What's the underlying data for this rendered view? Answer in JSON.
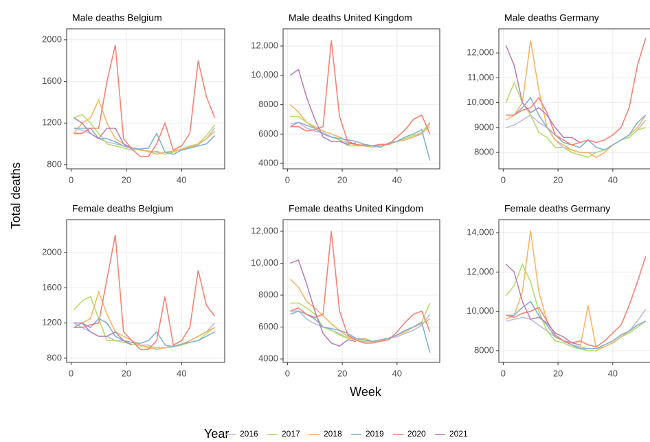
{
  "chart_data": [
    {
      "type": "line",
      "title": "Male deaths Belgium",
      "x": [
        1,
        4,
        7,
        10,
        13,
        16,
        19,
        22,
        25,
        28,
        31,
        34,
        37,
        40,
        43,
        46,
        49,
        52
      ],
      "xlim": [
        -1.6,
        55.6
      ],
      "xticks": [
        0,
        20,
        40
      ],
      "ylim": [
        760,
        2105
      ],
      "yticks": [
        800,
        1200,
        1600,
        2000
      ],
      "grid": true,
      "series": [
        {
          "name": "2016",
          "color": "#bebada",
          "values": [
            1150,
            1130,
            1100,
            1050,
            1020,
            1000,
            980,
            960,
            940,
            930,
            920,
            900,
            930,
            950,
            960,
            990,
            1050,
            1150
          ]
        },
        {
          "name": "2017",
          "color": "#b3de69",
          "values": [
            1250,
            1280,
            1200,
            1100,
            1000,
            980,
            960,
            940,
            950,
            920,
            930,
            900,
            920,
            950,
            980,
            1000,
            1080,
            1180
          ]
        },
        {
          "name": "2018",
          "color": "#fdb462",
          "values": [
            1100,
            1200,
            1250,
            1420,
            1200,
            1050,
            1000,
            960,
            940,
            930,
            900,
            920,
            930,
            950,
            970,
            1000,
            1050,
            1120
          ]
        },
        {
          "name": "2019",
          "color": "#80b1d3",
          "values": [
            1150,
            1150,
            1150,
            1050,
            1050,
            1020,
            980,
            960,
            950,
            960,
            1100,
            920,
            900,
            940,
            960,
            980,
            1000,
            1080
          ]
        },
        {
          "name": "2020",
          "color": "#fb8072",
          "values": [
            1100,
            1100,
            1150,
            1150,
            1600,
            1950,
            1050,
            950,
            880,
            880,
            1000,
            1200,
            940,
            980,
            1100,
            1800,
            1450,
            1250
          ]
        },
        {
          "name": "2021",
          "color": "#bc80bd",
          "values": [
            1250,
            1200,
            1100,
            1050,
            1150,
            1150,
            1000,
            950,
            null,
            null,
            null,
            null,
            null,
            null,
            null,
            null,
            null,
            null
          ]
        }
      ]
    },
    {
      "type": "line",
      "title": "Male deaths United Kingdom",
      "x": [
        1,
        4,
        7,
        10,
        13,
        16,
        19,
        22,
        25,
        28,
        31,
        34,
        37,
        40,
        43,
        46,
        49,
        52
      ],
      "xlim": [
        -1.6,
        55.6
      ],
      "xticks": [
        0,
        20,
        40
      ],
      "ylim": [
        3630,
        13170
      ],
      "yticks": [
        4000,
        6000,
        8000,
        {
          "value": 10000,
          "label": "10,000"
        },
        {
          "value": 12000,
          "label": "12,000"
        }
      ],
      "grid": true,
      "series": [
        {
          "name": "2016",
          "color": "#bebada",
          "values": [
            6700,
            6800,
            6400,
            6200,
            6100,
            5800,
            5600,
            5400,
            5300,
            5200,
            5200,
            5300,
            5300,
            5500,
            5600,
            5800,
            6000,
            6700
          ]
        },
        {
          "name": "2017",
          "color": "#b3de69",
          "values": [
            7200,
            7200,
            6800,
            6400,
            6000,
            5800,
            5600,
            5200,
            5200,
            5200,
            5100,
            5200,
            5300,
            5500,
            5700,
            5900,
            6100,
            6800
          ]
        },
        {
          "name": "2018",
          "color": "#fdb462",
          "values": [
            8000,
            7500,
            6800,
            6500,
            6200,
            6000,
            5800,
            5500,
            5200,
            5300,
            5200,
            5200,
            5300,
            5500,
            5600,
            5800,
            6100,
            6500
          ]
        },
        {
          "name": "2019",
          "color": "#80b1d3",
          "values": [
            6500,
            6800,
            6600,
            6400,
            6000,
            5800,
            5700,
            5600,
            5500,
            5300,
            5200,
            5100,
            5400,
            5500,
            5800,
            6000,
            6300,
            4200
          ]
        },
        {
          "name": "2020",
          "color": "#fb8072",
          "values": [
            6500,
            6500,
            6200,
            6300,
            6500,
            12400,
            7200,
            5500,
            5300,
            5200,
            5200,
            5300,
            5300,
            5800,
            6300,
            7000,
            7300,
            6000
          ]
        },
        {
          "name": "2021",
          "color": "#bc80bd",
          "values": [
            10000,
            10400,
            8500,
            7000,
            5800,
            5500,
            5500,
            5300,
            5400,
            null,
            null,
            null,
            null,
            null,
            null,
            null,
            null,
            null
          ]
        }
      ]
    },
    {
      "type": "line",
      "title": "Male deaths Germany",
      "x": [
        1,
        4,
        7,
        10,
        13,
        16,
        19,
        22,
        25,
        28,
        31,
        34,
        37,
        40,
        43,
        46,
        49,
        52
      ],
      "xlim": [
        -1.6,
        55.6
      ],
      "xticks": [
        0,
        20,
        40
      ],
      "ylim": [
        7340,
        12970
      ],
      "yticks": [
        8000,
        9000,
        {
          "value": 10000,
          "label": "10,000"
        },
        {
          "value": 11000,
          "label": "11,000"
        },
        {
          "value": 12000,
          "label": "12,000"
        }
      ],
      "grid": true,
      "series": [
        {
          "name": "2016",
          "color": "#bebada",
          "values": [
            9000,
            9100,
            9300,
            9500,
            9200,
            9000,
            8500,
            8200,
            8100,
            8000,
            8000,
            8000,
            8100,
            8300,
            8500,
            8600,
            8900,
            9300
          ]
        },
        {
          "name": "2017",
          "color": "#b3de69",
          "values": [
            10000,
            10800,
            10000,
            9500,
            8800,
            8600,
            8200,
            8200,
            8000,
            7900,
            7800,
            8000,
            8100,
            8300,
            8500,
            8600,
            8900,
            9000
          ]
        },
        {
          "name": "2018",
          "color": "#fdb462",
          "values": [
            9300,
            9500,
            10000,
            12500,
            10500,
            9000,
            8500,
            8300,
            8100,
            8000,
            8000,
            7800,
            8000,
            8300,
            8500,
            8700,
            9000,
            9500
          ]
        },
        {
          "name": "2019",
          "color": "#80b1d3",
          "values": [
            9500,
            9500,
            9800,
            10200,
            9500,
            9000,
            8700,
            8400,
            8300,
            8200,
            8500,
            8200,
            8100,
            8300,
            8500,
            8700,
            9200,
            9500
          ]
        },
        {
          "name": "2020",
          "color": "#fb8072",
          "values": [
            9500,
            9500,
            9700,
            9800,
            10200,
            9600,
            8700,
            8500,
            8300,
            8400,
            8500,
            8400,
            8500,
            8700,
            9000,
            9800,
            11500,
            12600
          ]
        },
        {
          "name": "2021",
          "color": "#bc80bd",
          "values": [
            12300,
            11500,
            10000,
            9600,
            9800,
            9500,
            9000,
            8600,
            8600,
            8400,
            null,
            null,
            null,
            null,
            null,
            null,
            null,
            null
          ]
        }
      ]
    },
    {
      "type": "line",
      "title": "Female deaths Belgium",
      "x": [
        1,
        4,
        7,
        10,
        13,
        16,
        19,
        22,
        25,
        28,
        31,
        34,
        37,
        40,
        43,
        46,
        49,
        52
      ],
      "xlim": [
        -1.6,
        55.6
      ],
      "xticks": [
        0,
        20,
        40
      ],
      "ylim": [
        753,
        2374
      ],
      "yticks": [
        800,
        1200,
        1600,
        2000
      ],
      "grid": true,
      "series": [
        {
          "name": "2016",
          "color": "#bebada",
          "values": [
            1200,
            1150,
            1100,
            1050,
            1050,
            1000,
            1000,
            980,
            950,
            950,
            900,
            920,
            930,
            950,
            1000,
            1050,
            1100,
            1200
          ]
        },
        {
          "name": "2017",
          "color": "#b3de69",
          "values": [
            1350,
            1450,
            1500,
            1250,
            1000,
            1000,
            980,
            960,
            940,
            930,
            920,
            920,
            930,
            950,
            980,
            1000,
            1080,
            1150
          ]
        },
        {
          "name": "2018",
          "color": "#fdb462",
          "values": [
            1150,
            1200,
            1250,
            1550,
            1300,
            1100,
            1050,
            1000,
            950,
            920,
            900,
            920,
            940,
            960,
            1000,
            1050,
            1100,
            1150
          ]
        },
        {
          "name": "2019",
          "color": "#80b1d3",
          "values": [
            1150,
            1200,
            1150,
            1250,
            1200,
            1050,
            1000,
            980,
            970,
            1000,
            1100,
            950,
            930,
            960,
            980,
            1000,
            1050,
            1100
          ]
        },
        {
          "name": "2020",
          "color": "#fb8072",
          "values": [
            1150,
            1150,
            1180,
            1200,
            1700,
            2200,
            1100,
            1000,
            900,
            900,
            1000,
            1500,
            950,
            1000,
            1150,
            1800,
            1400,
            1280
          ]
        },
        {
          "name": "2021",
          "color": "#bc80bd",
          "values": [
            1200,
            1200,
            1100,
            1050,
            1050,
            1100,
            1000,
            950,
            null,
            null,
            null,
            null,
            null,
            null,
            null,
            null,
            null,
            null
          ]
        }
      ]
    },
    {
      "type": "line",
      "title": "Female deaths United Kingdom",
      "x": [
        1,
        4,
        7,
        10,
        13,
        16,
        19,
        22,
        25,
        28,
        31,
        34,
        37,
        40,
        43,
        46,
        49,
        52
      ],
      "xlim": [
        -1.6,
        55.6
      ],
      "xticks": [
        0,
        20,
        40
      ],
      "ylim": [
        3785,
        12731
      ],
      "yticks": [
        4000,
        6000,
        8000,
        {
          "value": 10000,
          "label": "10,000"
        },
        {
          "value": 12000,
          "label": "12,000"
        }
      ],
      "grid": true,
      "series": [
        {
          "name": "2016",
          "color": "#bebada",
          "values": [
            7000,
            7000,
            6500,
            6200,
            6000,
            5800,
            5600,
            5300,
            5200,
            5100,
            5100,
            5200,
            5300,
            5400,
            5600,
            5800,
            6100,
            6800
          ]
        },
        {
          "name": "2017",
          "color": "#b3de69",
          "values": [
            7500,
            7500,
            7200,
            6800,
            6000,
            5800,
            5500,
            5300,
            5200,
            5100,
            5100,
            5200,
            5300,
            5500,
            5700,
            6000,
            6300,
            7500
          ]
        },
        {
          "name": "2018",
          "color": "#fdb462",
          "values": [
            9000,
            8500,
            7600,
            7200,
            6700,
            6200,
            5800,
            5400,
            5200,
            5300,
            5100,
            5100,
            5300,
            5500,
            5700,
            6000,
            6200,
            6500
          ]
        },
        {
          "name": "2019",
          "color": "#80b1d3",
          "values": [
            6800,
            7000,
            6800,
            6500,
            6000,
            5900,
            5800,
            5600,
            5300,
            5200,
            5100,
            5200,
            5300,
            5500,
            5800,
            6000,
            6300,
            4400
          ]
        },
        {
          "name": "2020",
          "color": "#fb8072",
          "values": [
            7000,
            7200,
            6800,
            6600,
            6800,
            12000,
            7000,
            5500,
            5200,
            5000,
            5000,
            5100,
            5200,
            5700,
            6300,
            6800,
            7000,
            5700
          ]
        },
        {
          "name": "2021",
          "color": "#bc80bd",
          "values": [
            10000,
            10200,
            8700,
            7000,
            5600,
            5000,
            4800,
            5200,
            5100,
            null,
            null,
            null,
            null,
            null,
            null,
            null,
            null,
            null
          ]
        }
      ]
    },
    {
      "type": "line",
      "title": "Female deaths Germany",
      "x": [
        1,
        4,
        7,
        10,
        13,
        16,
        19,
        22,
        25,
        28,
        31,
        34,
        37,
        40,
        43,
        46,
        49,
        52
      ],
      "xlim": [
        -1.6,
        55.6
      ],
      "xticks": [
        0,
        20,
        40
      ],
      "ylim": [
        7407,
        14663
      ],
      "yticks": [
        8000,
        {
          "value": 10000,
          "label": "10,000"
        },
        {
          "value": 12000,
          "label": "12,000"
        },
        {
          "value": 14000,
          "label": "14,000"
        }
      ],
      "grid": true,
      "series": [
        {
          "name": "2016",
          "color": "#bebada",
          "values": [
            9500,
            9600,
            9700,
            9600,
            9300,
            9000,
            8700,
            8500,
            8300,
            8200,
            8100,
            8100,
            8200,
            8400,
            8700,
            9000,
            9500,
            10100
          ]
        },
        {
          "name": "2017",
          "color": "#b3de69",
          "values": [
            10800,
            11300,
            12400,
            11500,
            10000,
            9000,
            8500,
            8400,
            8200,
            8100,
            8000,
            8000,
            8200,
            8400,
            8700,
            8900,
            9200,
            9500
          ]
        },
        {
          "name": "2018",
          "color": "#fdb462",
          "values": [
            9600,
            9800,
            11000,
            14100,
            11000,
            9500,
            8800,
            8500,
            8300,
            8100,
            10300,
            8100,
            8200,
            8400,
            8700,
            9000,
            9300,
            9500
          ]
        },
        {
          "name": "2019",
          "color": "#80b1d3",
          "values": [
            9800,
            9800,
            10200,
            10500,
            9800,
            9300,
            8700,
            8500,
            8300,
            8100,
            8100,
            8100,
            8300,
            8500,
            8800,
            9000,
            9300,
            9500
          ]
        },
        {
          "name": "2020",
          "color": "#fb8072",
          "values": [
            9800,
            9700,
            9900,
            10000,
            10200,
            9500,
            8800,
            8500,
            8400,
            8500,
            8300,
            8200,
            8500,
            8900,
            9300,
            10300,
            11500,
            12800
          ]
        },
        {
          "name": "2021",
          "color": "#bc80bd",
          "values": [
            12400,
            12000,
            10500,
            9600,
            9700,
            9400,
            8900,
            8700,
            8400,
            8300,
            null,
            null,
            null,
            null,
            null,
            null,
            null,
            null
          ]
        }
      ]
    }
  ],
  "x_label": "Week",
  "y_label": "Total deaths",
  "legend_title": "Year"
}
